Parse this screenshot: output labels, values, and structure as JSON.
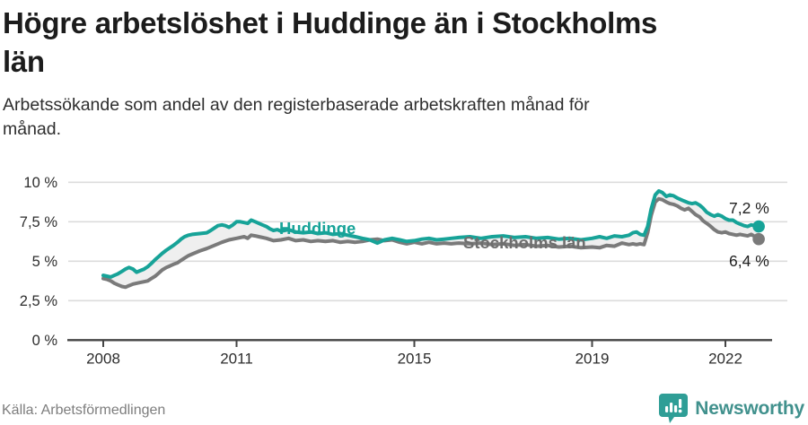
{
  "header": {
    "title_lines": [
      "Högre arbetslöshet i Huddinge än i Stockholms",
      "län"
    ],
    "subtitle_lines": [
      "Arbetssökande som andel av den registerbaserade arbetskraften månad för",
      "månad."
    ]
  },
  "chart_data": {
    "type": "line",
    "title": "Högre arbetslöshet i Huddinge än i Stockholms län",
    "subtitle": "Arbetssökande som andel av den registerbaserade arbetskraften månad för månad.",
    "unit": "%",
    "grid": "horizontal",
    "legend_position": "inline-labels",
    "xlim": [
      2008,
      2022.83
    ],
    "ylim": [
      0,
      10
    ],
    "grid_color": "#dcdcdc",
    "axis_color": "#454545",
    "tick_label_color": "#2d2d2d",
    "value_label_color": "#1f1f1f",
    "band_color": "rgba(125,125,125,0.12)",
    "y_ticks": [
      {
        "value": 0,
        "label": "0 %"
      },
      {
        "value": 2.5,
        "label": "2,5 %"
      },
      {
        "value": 5,
        "label": "5 %"
      },
      {
        "value": 7.5,
        "label": "7,5 %"
      },
      {
        "value": 10,
        "label": "10 %"
      }
    ],
    "x_ticks": [
      {
        "year": 2008,
        "label": "2008"
      },
      {
        "year": 2011,
        "label": "2011"
      },
      {
        "year": 2015,
        "label": "2015"
      },
      {
        "year": 2019,
        "label": "2019"
      },
      {
        "year": 2022,
        "label": "2022"
      }
    ],
    "series": [
      {
        "name": "Huddinge",
        "color": "#17a398",
        "label_color": "#17a398",
        "end_value": 7.2,
        "end_label": "7,2 %",
        "points": [
          [
            2008.0,
            4.1
          ],
          [
            2008.08,
            4.05
          ],
          [
            2008.17,
            4.0
          ],
          [
            2008.25,
            4.1
          ],
          [
            2008.33,
            4.2
          ],
          [
            2008.42,
            4.35
          ],
          [
            2008.5,
            4.5
          ],
          [
            2008.58,
            4.6
          ],
          [
            2008.67,
            4.5
          ],
          [
            2008.75,
            4.3
          ],
          [
            2008.83,
            4.4
          ],
          [
            2008.92,
            4.5
          ],
          [
            2009.0,
            4.65
          ],
          [
            2009.08,
            4.85
          ],
          [
            2009.17,
            5.1
          ],
          [
            2009.25,
            5.3
          ],
          [
            2009.33,
            5.5
          ],
          [
            2009.42,
            5.7
          ],
          [
            2009.5,
            5.85
          ],
          [
            2009.58,
            6.0
          ],
          [
            2009.67,
            6.2
          ],
          [
            2009.75,
            6.4
          ],
          [
            2009.83,
            6.55
          ],
          [
            2009.92,
            6.65
          ],
          [
            2010.0,
            6.7
          ],
          [
            2010.17,
            6.75
          ],
          [
            2010.33,
            6.8
          ],
          [
            2010.42,
            6.95
          ],
          [
            2010.5,
            7.1
          ],
          [
            2010.58,
            7.25
          ],
          [
            2010.67,
            7.3
          ],
          [
            2010.75,
            7.25
          ],
          [
            2010.83,
            7.15
          ],
          [
            2010.92,
            7.3
          ],
          [
            2011.0,
            7.5
          ],
          [
            2011.08,
            7.5
          ],
          [
            2011.17,
            7.45
          ],
          [
            2011.25,
            7.4
          ],
          [
            2011.33,
            7.6
          ],
          [
            2011.42,
            7.5
          ],
          [
            2011.5,
            7.4
          ],
          [
            2011.58,
            7.3
          ],
          [
            2011.67,
            7.2
          ],
          [
            2011.75,
            7.05
          ],
          [
            2011.83,
            6.95
          ],
          [
            2011.92,
            7.0
          ],
          [
            2012.0,
            6.9
          ],
          [
            2012.17,
            7.0
          ],
          [
            2012.33,
            6.85
          ],
          [
            2012.5,
            6.8
          ],
          [
            2012.67,
            6.85
          ],
          [
            2012.83,
            6.75
          ],
          [
            2013.0,
            6.8
          ],
          [
            2013.17,
            6.7
          ],
          [
            2013.33,
            6.75
          ],
          [
            2013.5,
            6.65
          ],
          [
            2013.67,
            6.55
          ],
          [
            2013.83,
            6.45
          ],
          [
            2014.0,
            6.35
          ],
          [
            2014.17,
            6.15
          ],
          [
            2014.33,
            6.35
          ],
          [
            2014.5,
            6.45
          ],
          [
            2014.67,
            6.35
          ],
          [
            2014.83,
            6.25
          ],
          [
            2015.0,
            6.3
          ],
          [
            2015.17,
            6.4
          ],
          [
            2015.33,
            6.45
          ],
          [
            2015.5,
            6.35
          ],
          [
            2015.67,
            6.4
          ],
          [
            2015.83,
            6.45
          ],
          [
            2016.0,
            6.5
          ],
          [
            2016.25,
            6.55
          ],
          [
            2016.5,
            6.45
          ],
          [
            2016.75,
            6.55
          ],
          [
            2017.0,
            6.6
          ],
          [
            2017.25,
            6.5
          ],
          [
            2017.5,
            6.55
          ],
          [
            2017.75,
            6.45
          ],
          [
            2018.0,
            6.5
          ],
          [
            2018.25,
            6.4
          ],
          [
            2018.5,
            6.45
          ],
          [
            2018.75,
            6.35
          ],
          [
            2019.0,
            6.45
          ],
          [
            2019.17,
            6.55
          ],
          [
            2019.33,
            6.45
          ],
          [
            2019.5,
            6.6
          ],
          [
            2019.67,
            6.55
          ],
          [
            2019.83,
            6.65
          ],
          [
            2019.92,
            6.8
          ],
          [
            2020.0,
            6.85
          ],
          [
            2020.08,
            6.7
          ],
          [
            2020.17,
            6.65
          ],
          [
            2020.25,
            7.2
          ],
          [
            2020.33,
            8.3
          ],
          [
            2020.42,
            9.2
          ],
          [
            2020.5,
            9.45
          ],
          [
            2020.58,
            9.35
          ],
          [
            2020.67,
            9.1
          ],
          [
            2020.75,
            9.2
          ],
          [
            2020.83,
            9.15
          ],
          [
            2020.92,
            9.0
          ],
          [
            2021.0,
            8.9
          ],
          [
            2021.08,
            8.8
          ],
          [
            2021.17,
            8.7
          ],
          [
            2021.25,
            8.65
          ],
          [
            2021.33,
            8.7
          ],
          [
            2021.42,
            8.55
          ],
          [
            2021.5,
            8.35
          ],
          [
            2021.58,
            8.1
          ],
          [
            2021.67,
            7.95
          ],
          [
            2021.75,
            7.85
          ],
          [
            2021.83,
            7.95
          ],
          [
            2021.92,
            7.85
          ],
          [
            2022.0,
            7.7
          ],
          [
            2022.08,
            7.6
          ],
          [
            2022.17,
            7.6
          ],
          [
            2022.25,
            7.45
          ],
          [
            2022.33,
            7.35
          ],
          [
            2022.42,
            7.25
          ],
          [
            2022.5,
            7.2
          ],
          [
            2022.58,
            7.3
          ],
          [
            2022.67,
            7.25
          ],
          [
            2022.75,
            7.2
          ]
        ]
      },
      {
        "name": "Stockholms län",
        "color": "#7a7a7a",
        "label_color": "#6e6e6e",
        "end_value": 6.4,
        "end_label": "6,4 %",
        "points": [
          [
            2008.0,
            3.9
          ],
          [
            2008.08,
            3.85
          ],
          [
            2008.17,
            3.75
          ],
          [
            2008.25,
            3.6
          ],
          [
            2008.33,
            3.5
          ],
          [
            2008.42,
            3.4
          ],
          [
            2008.5,
            3.35
          ],
          [
            2008.58,
            3.45
          ],
          [
            2008.67,
            3.55
          ],
          [
            2008.75,
            3.6
          ],
          [
            2008.83,
            3.65
          ],
          [
            2008.92,
            3.7
          ],
          [
            2009.0,
            3.75
          ],
          [
            2009.08,
            3.9
          ],
          [
            2009.17,
            4.05
          ],
          [
            2009.25,
            4.25
          ],
          [
            2009.33,
            4.45
          ],
          [
            2009.42,
            4.6
          ],
          [
            2009.5,
            4.7
          ],
          [
            2009.58,
            4.8
          ],
          [
            2009.67,
            4.9
          ],
          [
            2009.75,
            5.05
          ],
          [
            2009.83,
            5.2
          ],
          [
            2009.92,
            5.35
          ],
          [
            2010.0,
            5.45
          ],
          [
            2010.17,
            5.65
          ],
          [
            2010.33,
            5.8
          ],
          [
            2010.5,
            6.0
          ],
          [
            2010.67,
            6.2
          ],
          [
            2010.83,
            6.35
          ],
          [
            2011.0,
            6.45
          ],
          [
            2011.17,
            6.55
          ],
          [
            2011.25,
            6.45
          ],
          [
            2011.33,
            6.65
          ],
          [
            2011.42,
            6.6
          ],
          [
            2011.5,
            6.55
          ],
          [
            2011.67,
            6.45
          ],
          [
            2011.83,
            6.3
          ],
          [
            2012.0,
            6.35
          ],
          [
            2012.17,
            6.45
          ],
          [
            2012.33,
            6.3
          ],
          [
            2012.5,
            6.35
          ],
          [
            2012.67,
            6.25
          ],
          [
            2012.83,
            6.3
          ],
          [
            2013.0,
            6.25
          ],
          [
            2013.17,
            6.3
          ],
          [
            2013.33,
            6.2
          ],
          [
            2013.5,
            6.25
          ],
          [
            2013.67,
            6.2
          ],
          [
            2013.83,
            6.25
          ],
          [
            2014.0,
            6.35
          ],
          [
            2014.17,
            6.4
          ],
          [
            2014.33,
            6.3
          ],
          [
            2014.5,
            6.35
          ],
          [
            2014.67,
            6.2
          ],
          [
            2014.83,
            6.1
          ],
          [
            2015.0,
            6.2
          ],
          [
            2015.17,
            6.1
          ],
          [
            2015.33,
            6.2
          ],
          [
            2015.5,
            6.1
          ],
          [
            2015.67,
            6.15
          ],
          [
            2015.83,
            6.1
          ],
          [
            2016.0,
            6.15
          ],
          [
            2016.25,
            6.1
          ],
          [
            2016.5,
            6.15
          ],
          [
            2016.75,
            6.05
          ],
          [
            2017.0,
            6.1
          ],
          [
            2017.25,
            6.0
          ],
          [
            2017.5,
            6.05
          ],
          [
            2017.75,
            5.95
          ],
          [
            2018.0,
            6.0
          ],
          [
            2018.25,
            5.9
          ],
          [
            2018.5,
            5.95
          ],
          [
            2018.75,
            5.85
          ],
          [
            2019.0,
            5.9
          ],
          [
            2019.17,
            5.85
          ],
          [
            2019.33,
            6.0
          ],
          [
            2019.5,
            5.95
          ],
          [
            2019.67,
            6.15
          ],
          [
            2019.83,
            6.05
          ],
          [
            2019.92,
            6.1
          ],
          [
            2020.0,
            6.05
          ],
          [
            2020.08,
            6.1
          ],
          [
            2020.17,
            6.05
          ],
          [
            2020.25,
            6.8
          ],
          [
            2020.33,
            7.9
          ],
          [
            2020.42,
            8.75
          ],
          [
            2020.5,
            8.95
          ],
          [
            2020.58,
            8.9
          ],
          [
            2020.67,
            8.75
          ],
          [
            2020.75,
            8.65
          ],
          [
            2020.83,
            8.6
          ],
          [
            2020.92,
            8.5
          ],
          [
            2021.0,
            8.35
          ],
          [
            2021.08,
            8.25
          ],
          [
            2021.17,
            8.35
          ],
          [
            2021.25,
            8.15
          ],
          [
            2021.33,
            7.95
          ],
          [
            2021.42,
            7.8
          ],
          [
            2021.5,
            7.55
          ],
          [
            2021.58,
            7.4
          ],
          [
            2021.67,
            7.2
          ],
          [
            2021.75,
            7.0
          ],
          [
            2021.83,
            6.85
          ],
          [
            2021.92,
            6.8
          ],
          [
            2022.0,
            6.85
          ],
          [
            2022.08,
            6.75
          ],
          [
            2022.17,
            6.7
          ],
          [
            2022.25,
            6.65
          ],
          [
            2022.33,
            6.7
          ],
          [
            2022.42,
            6.65
          ],
          [
            2022.5,
            6.6
          ],
          [
            2022.58,
            6.7
          ],
          [
            2022.67,
            6.55
          ],
          [
            2022.75,
            6.4
          ]
        ]
      }
    ]
  },
  "footer": {
    "source": "Källa: Arbetsförmedlingen",
    "brand": "Newsworthy",
    "brand_color": "#41918d",
    "icon_color": "#2f9e96"
  }
}
